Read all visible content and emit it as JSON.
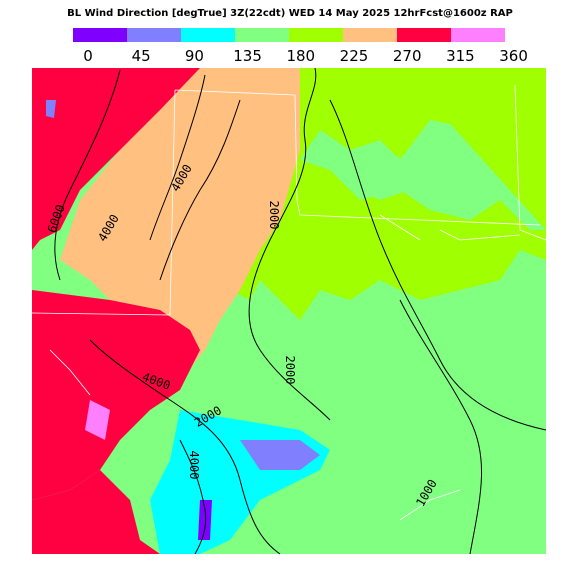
{
  "header": {
    "title": "BL Wind Direction [degTrue] 3Z(22cdt) WED 14 May 2025 12hrFcst@1600z RAP"
  },
  "colorbar": {
    "colors": [
      "#8000ff",
      "#8080ff",
      "#00ffff",
      "#80ff80",
      "#a0ff00",
      "#ffc080",
      "#ff0040",
      "#ff80ff"
    ],
    "ticks": [
      "0",
      "45",
      "90",
      "135",
      "180",
      "225",
      "270",
      "315",
      "360"
    ]
  },
  "map": {
    "contour_labels": [
      "6000",
      "4000",
      "4000",
      "2000",
      "2000",
      "4000",
      "2000",
      "4000",
      "1000"
    ]
  }
}
